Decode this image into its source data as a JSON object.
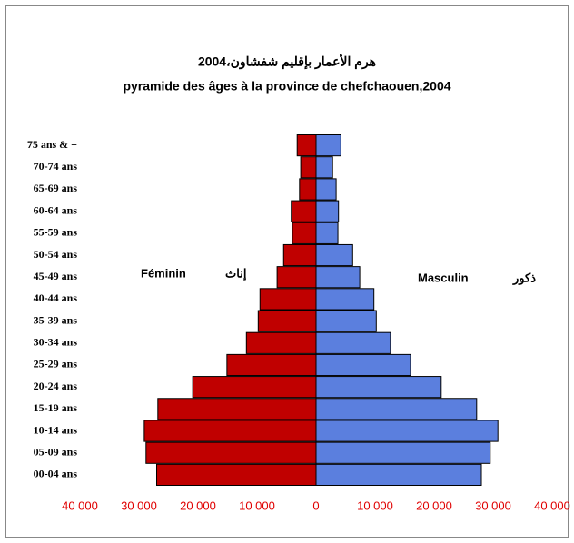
{
  "chart_data": {
    "type": "pyramid",
    "title": "هرم الأعمار بإقليم شفشاون،2004",
    "subtitle": "pyramide des âges à la province de chefchaouen,2004",
    "categories": [
      "75 ans & +",
      "70-74 ans",
      "65-69 ans",
      "60-64 ans",
      "55-59 ans",
      "50-54 ans",
      "45-49 ans",
      "40-44 ans",
      "35-39 ans",
      "30-34 ans",
      "25-29 ans",
      "20-24 ans",
      "15-19 ans",
      "10-14 ans",
      "05-09 ans",
      "00-04 ans"
    ],
    "series": [
      {
        "name": "Féminin",
        "color": "#c00000",
        "values": [
          -3200,
          -2600,
          -2800,
          -4200,
          -4000,
          -5500,
          -6600,
          -9500,
          -9800,
          -11800,
          -15100,
          -20900,
          -26800,
          -29100,
          -28800,
          -27000
        ]
      },
      {
        "name": "Masculin",
        "color": "#5b7fde",
        "values": [
          4200,
          2800,
          3400,
          3800,
          3700,
          6200,
          7400,
          9800,
          10200,
          12600,
          16000,
          21200,
          27200,
          30800,
          29500,
          28000
        ]
      }
    ],
    "annotations": [
      "إناث",
      "ذكور"
    ],
    "xlim": [
      -40000,
      40000
    ],
    "xticks": [
      {
        "value": -40000,
        "label": "40 000"
      },
      {
        "value": -30000,
        "label": "30 000"
      },
      {
        "value": -20000,
        "label": "20 000"
      },
      {
        "value": -10000,
        "label": "10 000"
      },
      0,
      {
        "value": 10000,
        "label": "10 000"
      },
      {
        "value": 20000,
        "label": "20 000"
      },
      {
        "value": 30000,
        "label": "30 000"
      },
      {
        "value": 40000,
        "label": "40 000"
      }
    ]
  }
}
